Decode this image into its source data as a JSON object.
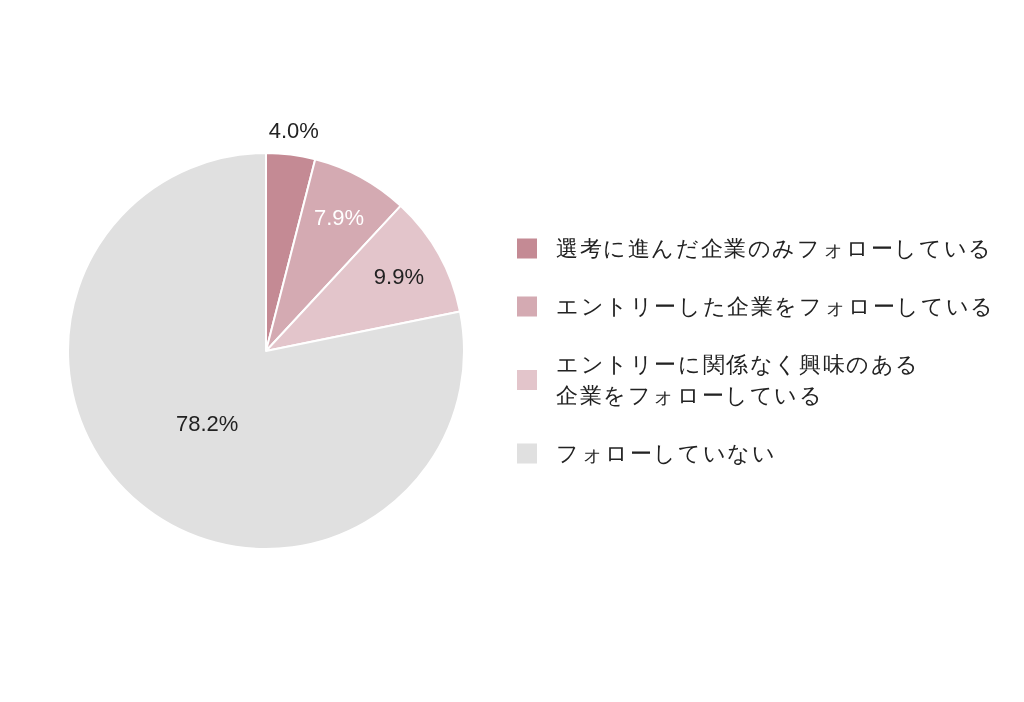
{
  "chart_data": {
    "type": "pie",
    "categories": [
      "選考に進んだ企業のみフォローしている",
      "エントリーした企業をフォローしている",
      "エントリーに関係なく興味のある企業をフォローしている",
      "フォローしていない"
    ],
    "values": [
      4.0,
      7.9,
      9.9,
      78.2
    ],
    "colors": [
      "#c48a94",
      "#d4aab2",
      "#e3c5cb",
      "#e0e0e0"
    ],
    "value_labels": [
      "4.0%",
      "7.9%",
      "9.9%",
      "78.2%"
    ],
    "legend": "right"
  }
}
